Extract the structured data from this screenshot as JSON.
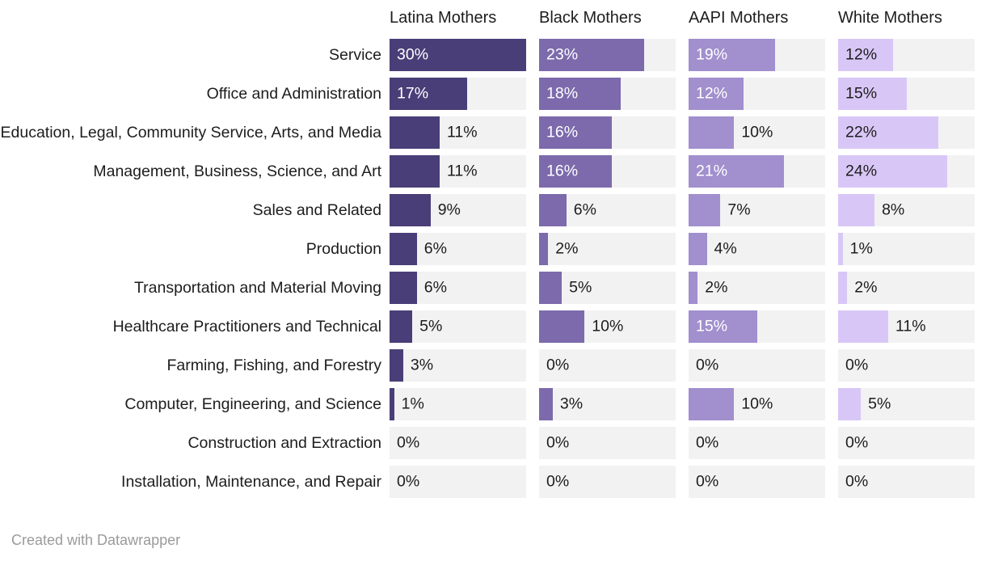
{
  "chart_data": {
    "type": "bar",
    "variant": "split-bars",
    "title": "",
    "xlabel": "",
    "ylabel": "",
    "grid": false,
    "legend_position": "column-headers",
    "value_suffix": "%",
    "axis_max": 30,
    "label_inside_threshold": 12,
    "track_color": "#f2f2f2",
    "categories": [
      "Service",
      "Office and Administration",
      "Education, Legal, Community Service, Arts, and Media",
      "Management, Business, Science, and Art",
      "Sales and Related",
      "Production",
      "Transportation and Material Moving",
      "Healthcare Practitioners and Technical",
      "Farming, Fishing, and Forestry",
      "Computer, Engineering, and Science",
      "Construction and Extraction",
      "Installation, Maintenance, and Repair"
    ],
    "series": [
      {
        "name": "Latina Mothers",
        "color": "#4a3e78",
        "label_color_inside": "#ffffff",
        "values": [
          30,
          17,
          11,
          11,
          9,
          6,
          6,
          5,
          3,
          1,
          0,
          0
        ],
        "labels": [
          "30%",
          "17%",
          "11%",
          "11%",
          "9%",
          "6%",
          "6%",
          "5%",
          "3%",
          "1%",
          "0%",
          "0%"
        ]
      },
      {
        "name": "Black Mothers",
        "color": "#7c6aac",
        "label_color_inside": "#ffffff",
        "values": [
          23,
          18,
          16,
          16,
          6,
          2,
          5,
          10,
          0,
          3,
          0,
          0
        ],
        "labels": [
          "23%",
          "18%",
          "16%",
          "16%",
          "6%",
          "2%",
          "5%",
          "10%",
          "0%",
          "3%",
          "0%",
          "0%"
        ]
      },
      {
        "name": "AAPI Mothers",
        "color": "#a18fce",
        "label_color_inside": "#ffffff",
        "values": [
          19,
          12,
          10,
          21,
          7,
          4,
          2,
          15,
          0,
          10,
          0,
          0
        ],
        "labels": [
          "19%",
          "12%",
          "10%",
          "21%",
          "7%",
          "4%",
          "2%",
          "15%",
          "0%",
          "10%",
          "0%",
          "0%"
        ]
      },
      {
        "name": "White Mothers",
        "color": "#d8c7f6",
        "label_color_inside": "#1d1d1d",
        "values": [
          12,
          15,
          22,
          24,
          8,
          1,
          2,
          11,
          0,
          5,
          0,
          0
        ],
        "labels": [
          "12%",
          "15%",
          "22%",
          "24%",
          "8%",
          "1%",
          "2%",
          "11%",
          "0%",
          "5%",
          "0%",
          "0%"
        ]
      }
    ],
    "label_color_outside": "#1d1d1d"
  },
  "footer": {
    "credit": "Created with Datawrapper"
  }
}
